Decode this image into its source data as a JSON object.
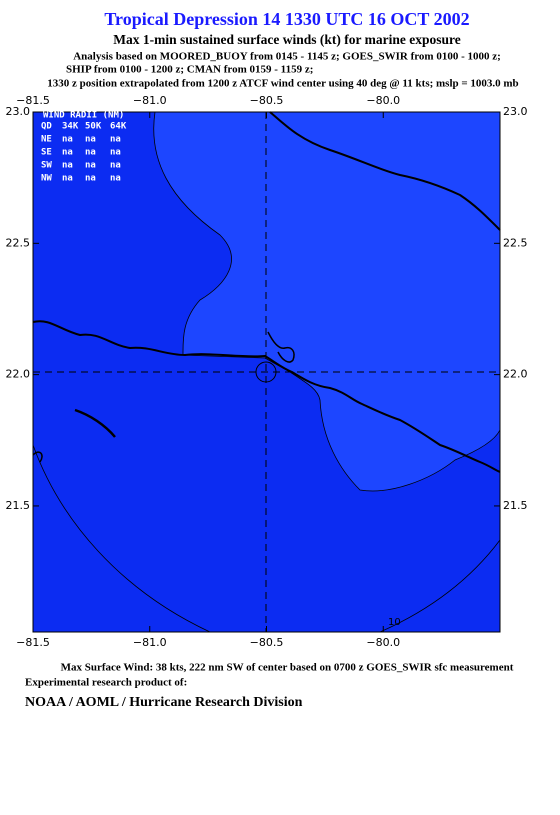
{
  "header": {
    "title": "Tropical Depression 14 1330 UTC 16 OCT 2002",
    "subtitle": "Max 1-min sustained surface winds (kt) for marine exposure",
    "notes": [
      "Analysis based on  MOORED_BUOY from 0145 - 1145 z;  GOES_SWIR from 0100 - 1000 z;",
      "SHIP from 0100 - 1200 z;  CMAN from 0159 - 1159 z;",
      "1330 z position extrapolated from 1200 z ATCF wind center using 40 deg @ 11 kts; mslp = 1003.0 mb"
    ]
  },
  "map": {
    "xlim": [
      -81.5,
      -79.5
    ],
    "ylim": [
      21.02,
      23.0
    ],
    "lon_ticks": [
      {
        "value": -81.5,
        "label": "−81.5"
      },
      {
        "value": -81.0,
        "label": "−81.0"
      },
      {
        "value": -80.5,
        "label": "−80.5"
      },
      {
        "value": -80.0,
        "label": "−80.0"
      }
    ],
    "lat_ticks": [
      {
        "value": 23.0,
        "label": "23.0"
      },
      {
        "value": 22.5,
        "label": "22.5"
      },
      {
        "value": 22.0,
        "label": "22.0"
      },
      {
        "value": 21.5,
        "label": "21.5"
      }
    ],
    "wind_radii": {
      "title": "WIND RADII (NM)",
      "header": [
        "QD",
        "34K",
        "50K",
        "64K"
      ],
      "rows": [
        [
          "NE",
          "na",
          "na",
          "na"
        ],
        [
          "SE",
          "na",
          "na",
          "na"
        ],
        [
          "SW",
          "na",
          "na",
          "na"
        ],
        [
          "NW",
          "na",
          "na",
          "na"
        ]
      ]
    },
    "contour_label": "10"
  },
  "footer": {
    "max_wind": "Max Surface Wind: 38 kts, 222 nm SW of center based on 0700 z GOES_SWIR sfc measurement",
    "product": "Experimental research product of:",
    "org": "NOAA / AOML / Hurricane Research Division"
  }
}
